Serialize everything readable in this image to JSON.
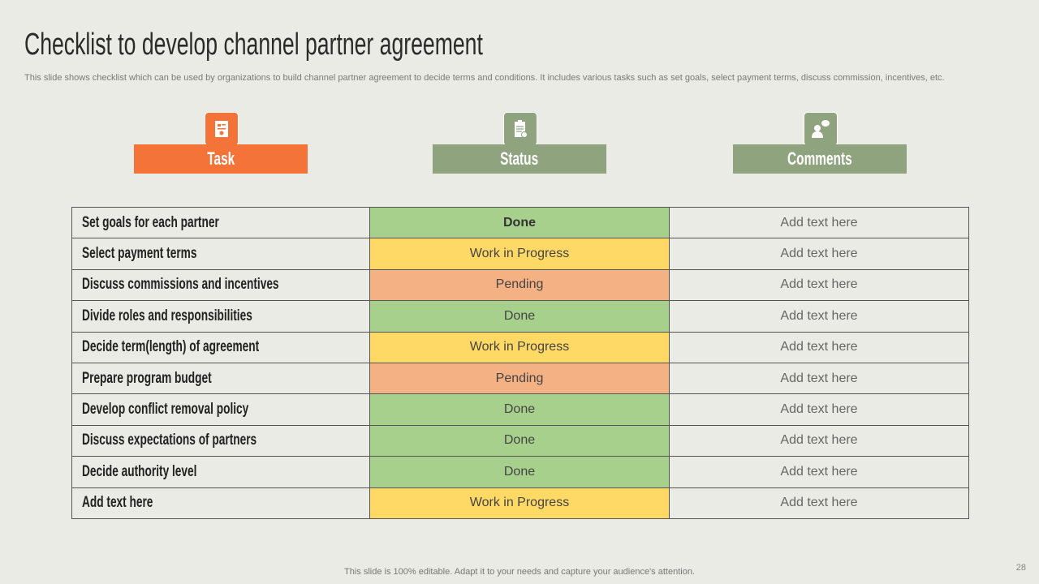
{
  "title": "Checklist to develop channel partner agreement",
  "subtitle": "This slide shows checklist which can be used by organizations to build channel partner agreement to decide terms and conditions. It includes various tasks such as set goals, select payment terms, discuss commission, incentives, etc.",
  "headers": [
    {
      "label": "Task",
      "icon": "document-checklist-icon",
      "color": "#f47338"
    },
    {
      "label": "Status",
      "icon": "clipboard-icon",
      "color": "#8fa37f"
    },
    {
      "label": "Comments",
      "icon": "person-speech-icon",
      "color": "#8fa37f"
    }
  ],
  "status_colors": {
    "Done": "#a8d08d",
    "Work in Progress": "#ffd966",
    "Pending": "#f4b183"
  },
  "rows": [
    {
      "task": "Set goals for each partner",
      "status": "Done",
      "comment": "Add text here"
    },
    {
      "task": "Select payment terms",
      "status": "Work in Progress",
      "comment": "Add text here"
    },
    {
      "task": "Discuss commissions and incentives",
      "status": "Pending",
      "comment": "Add text here"
    },
    {
      "task": "Divide roles and responsibilities",
      "status": "Done",
      "comment": "Add text here"
    },
    {
      "task": "Decide term(length) of agreement",
      "status": "Work in Progress",
      "comment": "Add text here"
    },
    {
      "task": "Prepare program budget",
      "status": "Pending",
      "comment": "Add text here"
    },
    {
      "task": "Develop conflict removal policy",
      "status": "Done",
      "comment": "Add text here"
    },
    {
      "task": "Discuss expectations of partners",
      "status": "Done",
      "comment": "Add text here"
    },
    {
      "task": "Decide authority level",
      "status": "Done",
      "comment": "Add text here"
    },
    {
      "task": "Add text here",
      "status": "Work in Progress",
      "comment": "Add text here"
    }
  ],
  "footer": "This slide is 100% editable. Adapt it to your needs and capture your audience's attention.",
  "page_number": "28"
}
